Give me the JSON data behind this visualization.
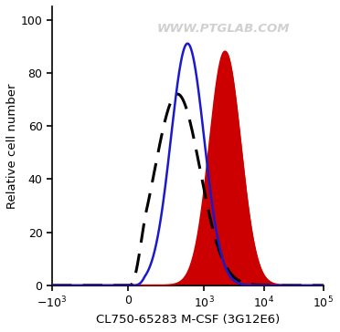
{
  "title": "",
  "xlabel": "CL750-65283 M-CSF (3G12E6)",
  "ylabel": "Relative cell number",
  "watermark": "WWW.PTGLAB.COM",
  "ylim": [
    0,
    105
  ],
  "yticks": [
    0,
    20,
    40,
    60,
    80,
    100
  ],
  "background_color": "#ffffff",
  "linthresh": 100,
  "linscale": 0.25,
  "xlim_left": -1000,
  "xlim_right": 100000,
  "curves": [
    {
      "name": "dashed_black",
      "color": "#000000",
      "linestyle": "dashed",
      "linewidth": 2.2,
      "fill": false,
      "peak_x_log": 2.55,
      "peak_y": 72,
      "sigma": 0.38,
      "zorder": 4
    },
    {
      "name": "solid_blue",
      "color": "#1a1acc",
      "linestyle": "solid",
      "linewidth": 1.8,
      "fill": false,
      "peak_x_log": 2.72,
      "peak_y": 91,
      "sigma": 0.28,
      "zorder": 5
    },
    {
      "name": "filled_red",
      "color": "#cc0000",
      "linestyle": "solid",
      "linewidth": 1.5,
      "fill": true,
      "fill_color": "#cc0000",
      "peak_x_log": 3.35,
      "peak_y": 88,
      "sigma": 0.26,
      "zorder": 2
    }
  ]
}
